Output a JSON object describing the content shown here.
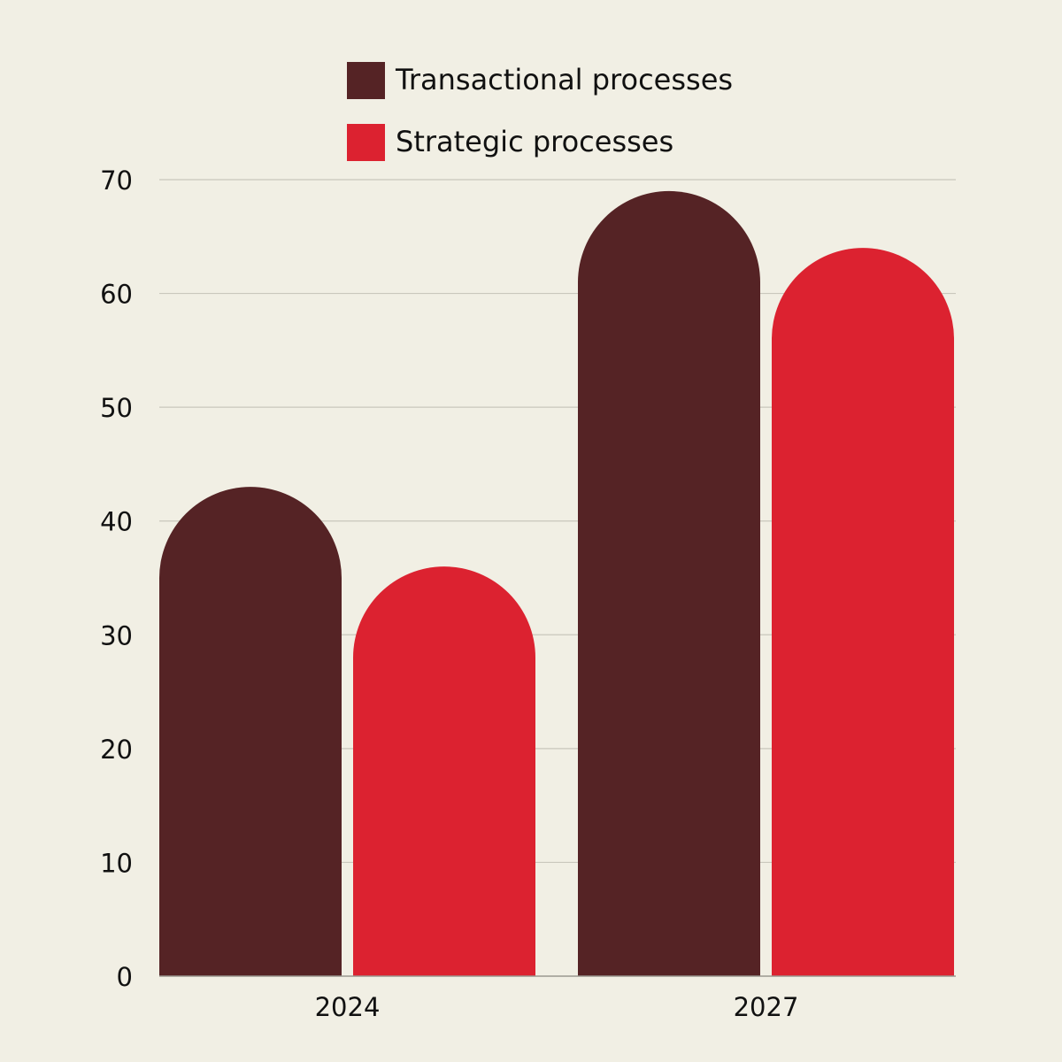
{
  "chart_data": {
    "type": "bar",
    "title": "",
    "xlabel": "",
    "ylabel": "",
    "categories": [
      "2024",
      "2027"
    ],
    "series": [
      {
        "name": "Transactional processes",
        "color": "#552325",
        "values": [
          43,
          69
        ]
      },
      {
        "name": "Strategic processes",
        "color": "#dc2230",
        "values": [
          36,
          64
        ]
      }
    ],
    "ylim": [
      0,
      70
    ],
    "yticks": [
      0,
      10,
      20,
      30,
      40,
      50,
      60,
      70
    ],
    "grid": true,
    "legend_position": "top-center",
    "bar_shape": "rounded-top"
  }
}
